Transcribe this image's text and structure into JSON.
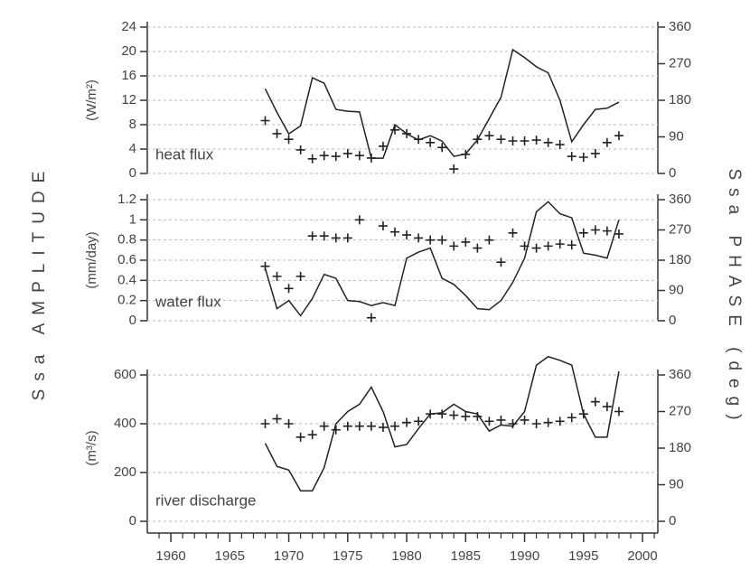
{
  "amplitude_title": "Ssa AMPLITUDE",
  "phase_title": "Ssa PHASE (deg)",
  "chart_data": [
    {
      "type": "line",
      "label": "heat flux",
      "ylabel": "(W/m²)",
      "x": [
        1968,
        1969,
        1970,
        1971,
        1972,
        1973,
        1974,
        1975,
        1976,
        1977,
        1978,
        1979,
        1980,
        1981,
        1982,
        1983,
        1984,
        1985,
        1986,
        1987,
        1988,
        1989,
        1990,
        1991,
        1992,
        1993,
        1994,
        1995,
        1996,
        1997,
        1998
      ],
      "xlim": [
        1958,
        2001.3
      ],
      "ylim": [
        0,
        24
      ],
      "yticks": [
        0,
        4,
        8,
        12,
        16,
        20,
        24
      ],
      "y2lim": [
        0,
        360
      ],
      "y2ticks": [
        0,
        90,
        180,
        270,
        360
      ],
      "grid": true,
      "series": [
        {
          "color": "#222222",
          "values": [
            13.9,
            10,
            6.5,
            7.8,
            15.7,
            14.8,
            10.5,
            10.2,
            10.1,
            2.5,
            2.5,
            8,
            6.5,
            5.5,
            6.2,
            5.3,
            2.8,
            3.2,
            5.5,
            9,
            12.5,
            20.3,
            19,
            17.5,
            16.5,
            12,
            5.2,
            8,
            10.5,
            10.7,
            11.7
          ]
        },
        {
          "color": "#222222",
          "axis": "y2",
          "marker": "+",
          "values": [
            130,
            98,
            84,
            58,
            36,
            44,
            42,
            49,
            44,
            38,
            67,
            107,
            98,
            84,
            76,
            64,
            11,
            47,
            84,
            93,
            84,
            80,
            80,
            82,
            76,
            71,
            42,
            40,
            49,
            76,
            93
          ]
        }
      ]
    },
    {
      "type": "line",
      "label": "water flux",
      "ylabel": "(mm/day)",
      "x": [
        1968,
        1969,
        1970,
        1971,
        1972,
        1973,
        1974,
        1975,
        1976,
        1977,
        1978,
        1979,
        1980,
        1981,
        1982,
        1983,
        1984,
        1985,
        1986,
        1987,
        1988,
        1989,
        1990,
        1991,
        1992,
        1993,
        1994,
        1995,
        1996,
        1997,
        1998
      ],
      "xlim": [
        1958,
        2001.3
      ],
      "ylim": [
        0,
        1.2
      ],
      "yticks": [
        0,
        0.2,
        0.4,
        0.6,
        0.8,
        1,
        1.2
      ],
      "y2lim": [
        0,
        360
      ],
      "y2ticks": [
        0,
        90,
        180,
        270,
        360
      ],
      "grid": true,
      "series": [
        {
          "color": "#222222",
          "values": [
            0.52,
            0.12,
            0.2,
            0.05,
            0.22,
            0.46,
            0.42,
            0.2,
            0.19,
            0.15,
            0.18,
            0.15,
            0.62,
            0.68,
            0.72,
            0.42,
            0.36,
            0.25,
            0.12,
            0.11,
            0.2,
            0.38,
            0.62,
            1.08,
            1.18,
            1.06,
            1.02,
            0.67,
            0.65,
            0.62,
            1.0
          ]
        },
        {
          "color": "#222222",
          "axis": "y2",
          "marker": "+",
          "values": [
            162,
            132,
            96,
            132,
            252,
            252,
            246,
            246,
            300,
            9,
            282,
            264,
            255,
            246,
            240,
            240,
            222,
            234,
            216,
            240,
            174,
            261,
            222,
            216,
            222,
            228,
            225,
            261,
            270,
            267,
            258
          ]
        }
      ]
    },
    {
      "type": "line",
      "label": "river discharge",
      "ylabel": "(m³/s)",
      "x": [
        1968,
        1969,
        1970,
        1971,
        1972,
        1973,
        1974,
        1975,
        1976,
        1977,
        1978,
        1979,
        1980,
        1981,
        1982,
        1983,
        1984,
        1985,
        1986,
        1987,
        1988,
        1989,
        1990,
        1991,
        1992,
        1993,
        1994,
        1995,
        1996,
        1997,
        1998
      ],
      "xlim": [
        1958,
        2001.3
      ],
      "xticks": [
        1960,
        1965,
        1970,
        1975,
        1980,
        1985,
        1990,
        1995,
        2000
      ],
      "xminorticks": [
        1959,
        1961,
        1962,
        1963,
        1964,
        1966,
        1967,
        1968,
        1969,
        1971,
        1972,
        1973,
        1974,
        1976,
        1977,
        1978,
        1979,
        1981,
        1982,
        1983,
        1984,
        1986,
        1987,
        1988,
        1989,
        1991,
        1992,
        1993,
        1994,
        1996,
        1997,
        1998,
        1999,
        2001
      ],
      "ylim": [
        0,
        600
      ],
      "yticks": [
        0,
        200,
        400,
        600
      ],
      "y2lim": [
        0,
        360
      ],
      "y2ticks": [
        0,
        90,
        180,
        270,
        360
      ],
      "grid": true,
      "series": [
        {
          "color": "#222222",
          "values": [
            320,
            225,
            210,
            125,
            125,
            220,
            400,
            450,
            480,
            550,
            450,
            305,
            315,
            380,
            440,
            445,
            480,
            450,
            440,
            370,
            395,
            390,
            450,
            640,
            675,
            660,
            640,
            440,
            345,
            345,
            615
          ]
        },
        {
          "color": "#222222",
          "axis": "y2",
          "marker": "+",
          "values": [
            240,
            252,
            240,
            207,
            213,
            234,
            225,
            234,
            234,
            234,
            231,
            234,
            243,
            246,
            264,
            264,
            261,
            258,
            258,
            246,
            249,
            240,
            249,
            240,
            243,
            246,
            255,
            264,
            294,
            282,
            270
          ]
        }
      ]
    }
  ]
}
